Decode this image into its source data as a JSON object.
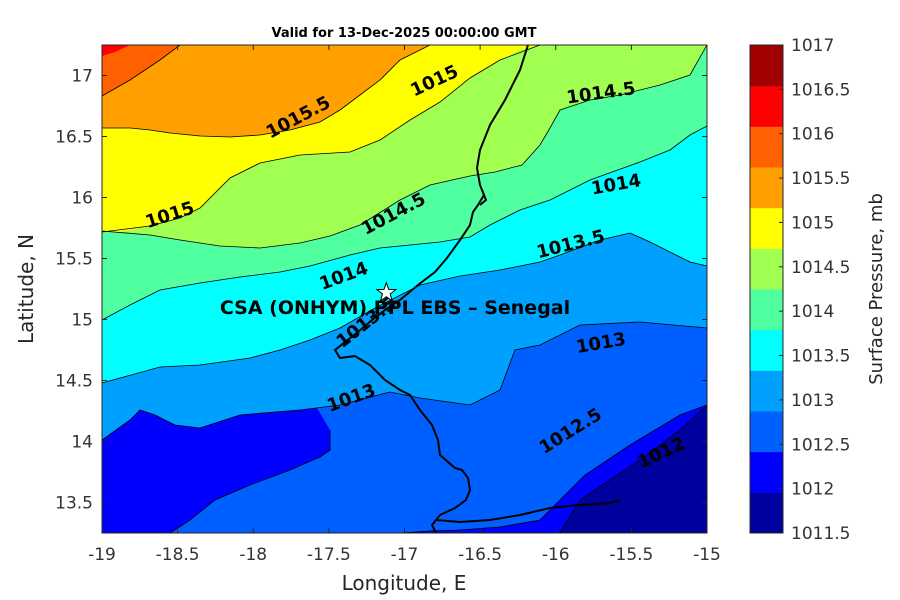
{
  "chart_data": {
    "type": "filled-contour-map",
    "title": "Valid for 13-Dec-2025 00:00:00 GMT",
    "xlabel": "Longitude, E",
    "ylabel": "Latitude, N",
    "xlim": [
      -19,
      -15
    ],
    "ylim": [
      13.25,
      17.25
    ],
    "xticks": [
      "-19",
      "-18.5",
      "-18",
      "-17.5",
      "-17",
      "-16.5",
      "-16",
      "-15.5",
      "-15"
    ],
    "yticks": [
      "13.5",
      "14",
      "14.5",
      "15",
      "15.5",
      "16",
      "16.5",
      "17"
    ],
    "colorbar": {
      "label": "Surface Pressure, mb",
      "ticks": [
        "1011.5",
        "1012",
        "1012.5",
        "1013",
        "1013.5",
        "1014",
        "1014.5",
        "1015",
        "1015.5",
        "1016",
        "1016.5",
        "1017"
      ],
      "colors": [
        "#00009f",
        "#0000ff",
        "#0060ff",
        "#00a0ff",
        "#00ffff",
        "#50ffa0",
        "#a0ff50",
        "#ffff00",
        "#ffa000",
        "#ff6000",
        "#ff0000",
        "#a00000"
      ]
    },
    "contour_labels": [
      {
        "text": "1015.5",
        "lon": -17.7,
        "lat": 16.65
      },
      {
        "text": "1015",
        "lon": -16.8,
        "lat": 16.95
      },
      {
        "text": "1014.5",
        "lon": -15.7,
        "lat": 16.85
      },
      {
        "text": "1015",
        "lon": -18.55,
        "lat": 15.85
      },
      {
        "text": "1014.5",
        "lon": -17.07,
        "lat": 15.86
      },
      {
        "text": "1014",
        "lon": -15.6,
        "lat": 16.1
      },
      {
        "text": "1014",
        "lon": -17.4,
        "lat": 15.35
      },
      {
        "text": "1013.5",
        "lon": -15.9,
        "lat": 15.61
      },
      {
        "text": "1013.5",
        "lon": -17.25,
        "lat": 14.97
      },
      {
        "text": "1013",
        "lon": -15.7,
        "lat": 14.8
      },
      {
        "text": "1013",
        "lon": -17.35,
        "lat": 14.35
      },
      {
        "text": "1012.5",
        "lon": -15.9,
        "lat": 14.08
      },
      {
        "text": "1012",
        "lon": -15.3,
        "lat": 13.9
      }
    ],
    "marker": {
      "label": "CSA (ONHYM) PPL EBS  – Senegal",
      "lon": -17.12,
      "lat": 15.22,
      "symbol": "star"
    }
  }
}
